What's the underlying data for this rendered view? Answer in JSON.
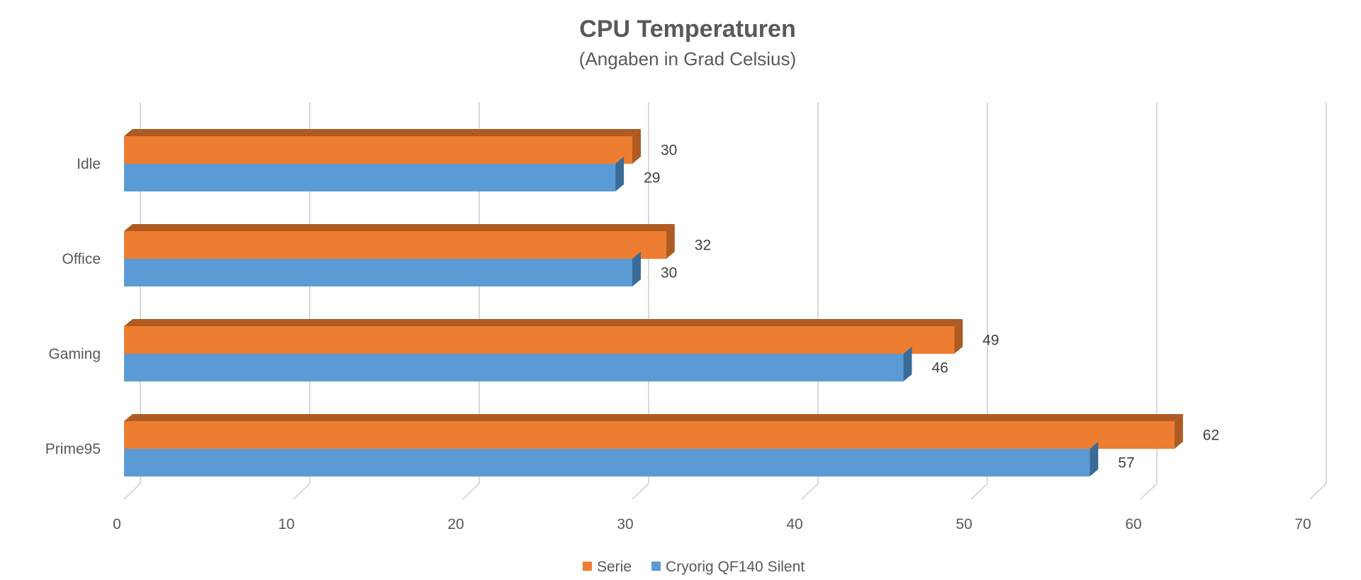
{
  "chart_data": {
    "type": "bar",
    "orientation": "horizontal",
    "style": "3d-clustered",
    "title": "CPU Temperaturen",
    "subtitle": "(Angaben in Grad Celsius)",
    "categories": [
      "Idle",
      "Office",
      "Gaming",
      "Prime95"
    ],
    "series": [
      {
        "name": "Serie",
        "color": "#ED7D31",
        "side_color": "#AE5A21",
        "values": [
          30,
          32,
          49,
          62
        ]
      },
      {
        "name": "Cryorig QF140 Silent",
        "color": "#5B9BD5",
        "side_color": "#3A6B97",
        "values": [
          29,
          30,
          46,
          57
        ]
      }
    ],
    "xlim": [
      0,
      70
    ],
    "xticks": [
      0,
      10,
      20,
      30,
      40,
      50,
      60,
      70
    ],
    "grid": true,
    "legend_position": "bottom",
    "data_labels": true
  }
}
